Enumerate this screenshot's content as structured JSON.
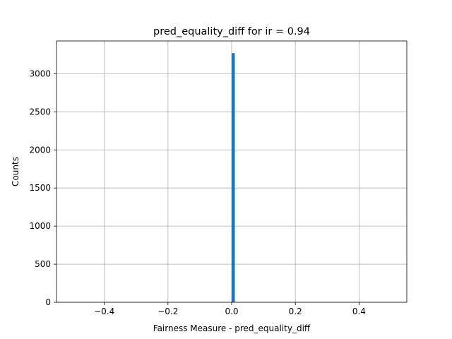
{
  "chart_data": {
    "type": "bar",
    "title": "pred_equality_diff for ir = 0.94",
    "xlabel": "Fairness Measure - pred_equality_diff",
    "ylabel": "Counts",
    "xlim": [
      -0.55,
      0.55
    ],
    "ylim": [
      0,
      3430
    ],
    "grid": true,
    "color": "#1f77b4",
    "xticks": [
      -0.4,
      -0.2,
      0.0,
      0.2,
      0.4
    ],
    "xtick_labels": [
      "−0.4",
      "−0.2",
      "0.0",
      "0.2",
      "0.4"
    ],
    "yticks": [
      0,
      500,
      1000,
      1500,
      2000,
      2500,
      3000
    ],
    "ytick_labels": [
      "0",
      "500",
      "1000",
      "1500",
      "2000",
      "2500",
      "3000"
    ],
    "bins": [
      {
        "x0": 0.0,
        "x1": 0.01,
        "count": 3270
      }
    ]
  }
}
